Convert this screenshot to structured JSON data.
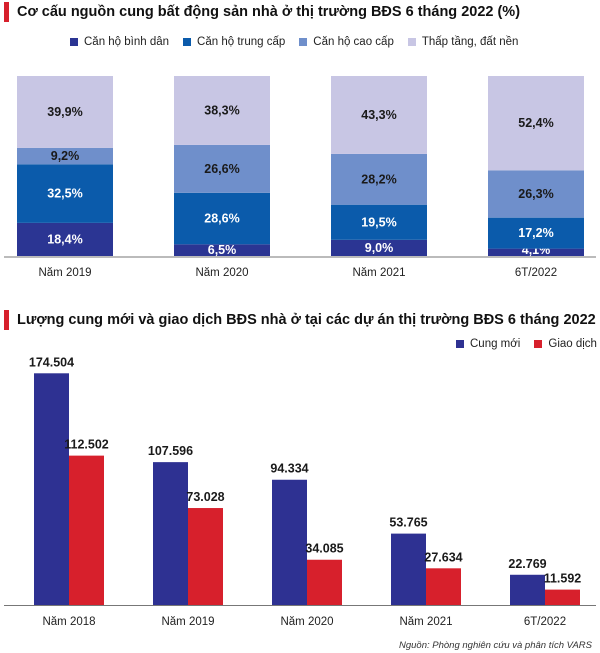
{
  "chart_data": [
    {
      "type": "bar",
      "stacked": true,
      "title": "Cơ cấu nguồn cung bất động sản nhà ở thị trường BĐS 6 tháng 2022 (%)",
      "categories": [
        "Năm 2019",
        "Năm 2020",
        "Năm 2021",
        "6T/2022"
      ],
      "series": [
        {
          "name": "Căn hộ bình dân",
          "color": "#2b3593",
          "values": [
            18.4,
            6.5,
            9.0,
            4.1
          ],
          "labels": [
            "18,4%",
            "6,5%",
            "9,0%",
            "4,1%"
          ]
        },
        {
          "name": "Căn hộ trung cấp",
          "color": "#0b5bab",
          "values": [
            32.5,
            28.6,
            19.5,
            17.2
          ],
          "labels": [
            "32,5%",
            "28,6%",
            "19,5%",
            "17,2%"
          ]
        },
        {
          "name": "Căn hộ cao cấp",
          "color": "#6f8fcb",
          "values": [
            9.2,
            26.6,
            28.2,
            26.3
          ],
          "labels": [
            "9,2%",
            "26,6%",
            "28,2%",
            "26,3%"
          ]
        },
        {
          "name": "Thấp tầng, đất nền",
          "color": "#c8c6e4",
          "values": [
            39.9,
            38.3,
            43.3,
            52.4
          ],
          "labels": [
            "39,9%",
            "38,3%",
            "43,3%",
            "52,4%"
          ]
        }
      ],
      "ylim": [
        0,
        100
      ],
      "xlabel": "",
      "ylabel": "",
      "grid": false,
      "legend": "top"
    },
    {
      "type": "bar",
      "title": "Lượng cung mới và giao dịch BĐS nhà ở tại các dự án thị trường BĐS 6 tháng 2022",
      "categories": [
        "Năm 2018",
        "Năm 2019",
        "Năm 2020",
        "Năm 2021",
        "6T/2022"
      ],
      "series": [
        {
          "name": "Cung mới",
          "color": "#2e3192",
          "values": [
            174504,
            107596,
            94334,
            53765,
            22769
          ],
          "labels": [
            "174.504",
            "107.596",
            "94.334",
            "53.765",
            "22.769"
          ]
        },
        {
          "name": "Giao dịch",
          "color": "#d7202c",
          "values": [
            112502,
            73028,
            34085,
            27634,
            11592
          ],
          "labels": [
            "112.502",
            "73.028",
            "34.085",
            "27.634",
            "11.592"
          ]
        }
      ],
      "ylim": [
        0,
        180000
      ],
      "xlabel": "",
      "ylabel": "",
      "grid": false,
      "legend": "top-right"
    }
  ],
  "source_note": "Nguồn: Phòng nghiên cứu và phân tích VARS"
}
